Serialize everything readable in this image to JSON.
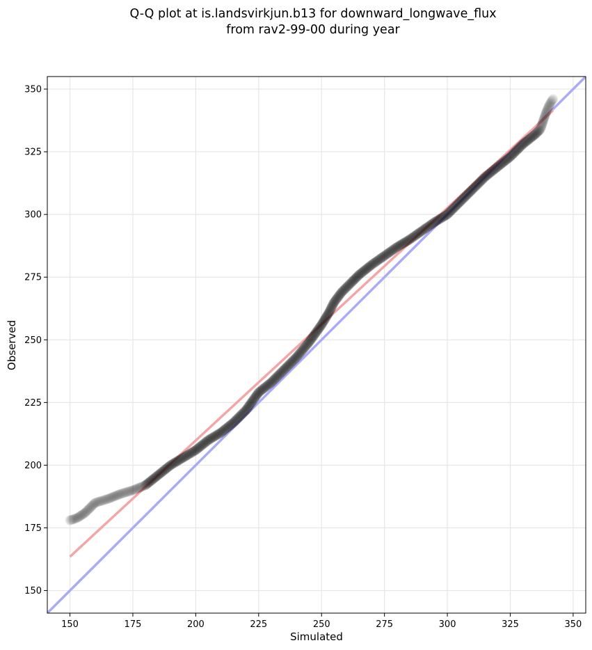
{
  "chart_data": {
    "type": "scatter",
    "title": "Q-Q plot at is.landsvirkjun.b13 for downward_longwave_flux",
    "subtitle": "from rav2-99-00 during year",
    "xlabel": "Simulated",
    "ylabel": "Observed",
    "xlim": [
      141,
      355
    ],
    "ylim": [
      141,
      355
    ],
    "xticks": [
      150,
      175,
      200,
      225,
      250,
      275,
      300,
      325,
      350
    ],
    "yticks": [
      150,
      175,
      200,
      225,
      250,
      275,
      300,
      325,
      350
    ],
    "grid": true,
    "colors": {
      "points": "#000000",
      "fit_line": "#f4a6a6",
      "identity_line": "#aaaaf8",
      "grid": "#e6e6e6"
    },
    "quantile_curve": [
      [
        150,
        178
      ],
      [
        153,
        179
      ],
      [
        156,
        181
      ],
      [
        158,
        183
      ],
      [
        160,
        185
      ],
      [
        165,
        186.5
      ],
      [
        170,
        188.5
      ],
      [
        175,
        190
      ],
      [
        180,
        192
      ],
      [
        185,
        196
      ],
      [
        190,
        200
      ],
      [
        195,
        203
      ],
      [
        200,
        206
      ],
      [
        205,
        210
      ],
      [
        210,
        213
      ],
      [
        215,
        217
      ],
      [
        220,
        222
      ],
      [
        225,
        229
      ],
      [
        230,
        233
      ],
      [
        235,
        238
      ],
      [
        240,
        243
      ],
      [
        245,
        249
      ],
      [
        250,
        256
      ],
      [
        253,
        261
      ],
      [
        255,
        265
      ],
      [
        258,
        269
      ],
      [
        262,
        273
      ],
      [
        265,
        276
      ],
      [
        270,
        280
      ],
      [
        275,
        283.5
      ],
      [
        280,
        287
      ],
      [
        285,
        290
      ],
      [
        290,
        293.5
      ],
      [
        295,
        297
      ],
      [
        300,
        300
      ],
      [
        305,
        305
      ],
      [
        310,
        310
      ],
      [
        315,
        315
      ],
      [
        320,
        319
      ],
      [
        325,
        323
      ],
      [
        330,
        328
      ],
      [
        335,
        332
      ],
      [
        337,
        334
      ],
      [
        338,
        337
      ],
      [
        339,
        340
      ],
      [
        340,
        342.5
      ],
      [
        341,
        344.5
      ],
      [
        342,
        346
      ]
    ],
    "fit_line": {
      "x": [
        150,
        342
      ],
      "y": [
        163.5,
        341.5
      ]
    },
    "identity_line": {
      "x": [
        141,
        355
      ],
      "y": [
        141,
        355
      ]
    }
  }
}
